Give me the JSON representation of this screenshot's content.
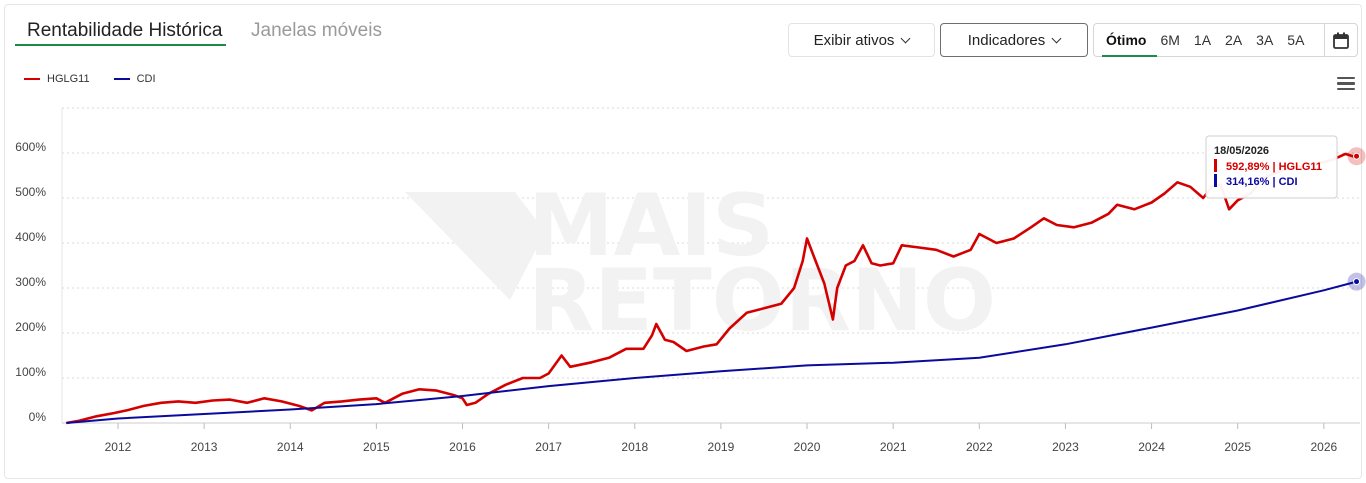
{
  "tabs": {
    "active": "Rentabilidade Histórica",
    "inactive": "Janelas móveis"
  },
  "toolbar": {
    "assets_label": "Exibir ativos",
    "indicators_label": "Indicadores",
    "periods": [
      "Ótimo",
      "6M",
      "1A",
      "2A",
      "3A",
      "5A"
    ],
    "active_period": "Ótimo"
  },
  "icons": {
    "calendar": "calendar-icon",
    "menu": "hamburger-menu-icon",
    "dropdown": "chevron-down-icon"
  },
  "watermark": [
    "MAIS",
    "RETORNO"
  ],
  "tooltip": {
    "date": "18/05/2026",
    "lines": [
      {
        "text": "592,89% | HGLG11",
        "color": "#d40000"
      },
      {
        "text": "314,16% | CDI",
        "color": "#0a0aa0"
      }
    ]
  },
  "chart_data": {
    "type": "line",
    "x_tick_labels": [
      "2012",
      "2013",
      "2014",
      "2015",
      "2016",
      "2017",
      "2018",
      "2019",
      "2020",
      "2021",
      "2022",
      "2023",
      "2024",
      "2025",
      "2026"
    ],
    "y_tick_labels": [
      "0%",
      "100%",
      "200%",
      "300%",
      "400%",
      "500%",
      "600%"
    ],
    "ylim": [
      0,
      700
    ],
    "xlim": [
      2011.35,
      2026.42
    ],
    "grid": true,
    "legend_position": "top-left",
    "series": [
      {
        "name": "HGLG11",
        "color": "#d40000",
        "points": [
          [
            2011.4,
            0
          ],
          [
            2011.55,
            5
          ],
          [
            2011.75,
            15
          ],
          [
            2011.95,
            22
          ],
          [
            2012.1,
            28
          ],
          [
            2012.3,
            38
          ],
          [
            2012.5,
            45
          ],
          [
            2012.7,
            48
          ],
          [
            2012.9,
            45
          ],
          [
            2013.1,
            50
          ],
          [
            2013.3,
            52
          ],
          [
            2013.5,
            45
          ],
          [
            2013.7,
            55
          ],
          [
            2013.9,
            48
          ],
          [
            2014.1,
            38
          ],
          [
            2014.25,
            28
          ],
          [
            2014.4,
            45
          ],
          [
            2014.6,
            48
          ],
          [
            2014.8,
            52
          ],
          [
            2015.0,
            55
          ],
          [
            2015.1,
            45
          ],
          [
            2015.3,
            65
          ],
          [
            2015.5,
            75
          ],
          [
            2015.7,
            72
          ],
          [
            2015.9,
            62
          ],
          [
            2016.0,
            55
          ],
          [
            2016.05,
            40
          ],
          [
            2016.15,
            45
          ],
          [
            2016.3,
            65
          ],
          [
            2016.5,
            85
          ],
          [
            2016.7,
            100
          ],
          [
            2016.9,
            100
          ],
          [
            2017.0,
            110
          ],
          [
            2017.15,
            150
          ],
          [
            2017.25,
            125
          ],
          [
            2017.5,
            135
          ],
          [
            2017.7,
            145
          ],
          [
            2017.9,
            165
          ],
          [
            2018.1,
            165
          ],
          [
            2018.2,
            195
          ],
          [
            2018.25,
            220
          ],
          [
            2018.35,
            185
          ],
          [
            2018.45,
            180
          ],
          [
            2018.6,
            160
          ],
          [
            2018.8,
            170
          ],
          [
            2018.95,
            175
          ],
          [
            2019.1,
            210
          ],
          [
            2019.3,
            245
          ],
          [
            2019.5,
            255
          ],
          [
            2019.7,
            265
          ],
          [
            2019.85,
            300
          ],
          [
            2019.95,
            360
          ],
          [
            2020.0,
            410
          ],
          [
            2020.1,
            360
          ],
          [
            2020.2,
            310
          ],
          [
            2020.25,
            270
          ],
          [
            2020.3,
            230
          ],
          [
            2020.35,
            300
          ],
          [
            2020.45,
            350
          ],
          [
            2020.55,
            360
          ],
          [
            2020.65,
            395
          ],
          [
            2020.75,
            355
          ],
          [
            2020.85,
            350
          ],
          [
            2021.0,
            355
          ],
          [
            2021.1,
            395
          ],
          [
            2021.3,
            390
          ],
          [
            2021.5,
            385
          ],
          [
            2021.7,
            370
          ],
          [
            2021.9,
            385
          ],
          [
            2022.0,
            420
          ],
          [
            2022.2,
            400
          ],
          [
            2022.4,
            410
          ],
          [
            2022.6,
            435
          ],
          [
            2022.75,
            455
          ],
          [
            2022.9,
            440
          ],
          [
            2023.1,
            435
          ],
          [
            2023.3,
            445
          ],
          [
            2023.5,
            465
          ],
          [
            2023.6,
            485
          ],
          [
            2023.8,
            475
          ],
          [
            2024.0,
            490
          ],
          [
            2024.15,
            510
          ],
          [
            2024.3,
            535
          ],
          [
            2024.45,
            525
          ],
          [
            2024.6,
            500
          ],
          [
            2024.7,
            525
          ],
          [
            2024.8,
            530
          ],
          [
            2024.9,
            475
          ],
          [
            2025.0,
            495
          ],
          [
            2025.15,
            510
          ],
          [
            2025.3,
            545
          ],
          [
            2025.5,
            560
          ],
          [
            2025.7,
            570
          ],
          [
            2025.9,
            575
          ],
          [
            2026.1,
            585
          ],
          [
            2026.25,
            598
          ],
          [
            2026.35,
            592
          ],
          [
            2026.38,
            592.89
          ]
        ]
      },
      {
        "name": "CDI",
        "color": "#0a0a9c",
        "points": [
          [
            2011.4,
            0
          ],
          [
            2012.0,
            10
          ],
          [
            2013.0,
            20
          ],
          [
            2014.0,
            30
          ],
          [
            2015.0,
            42
          ],
          [
            2016.0,
            60
          ],
          [
            2017.0,
            82
          ],
          [
            2018.0,
            100
          ],
          [
            2019.0,
            115
          ],
          [
            2020.0,
            128
          ],
          [
            2021.0,
            134
          ],
          [
            2022.0,
            145
          ],
          [
            2023.0,
            175
          ],
          [
            2024.0,
            212
          ],
          [
            2025.0,
            250
          ],
          [
            2026.0,
            295
          ],
          [
            2026.38,
            314.16
          ]
        ]
      }
    ]
  }
}
